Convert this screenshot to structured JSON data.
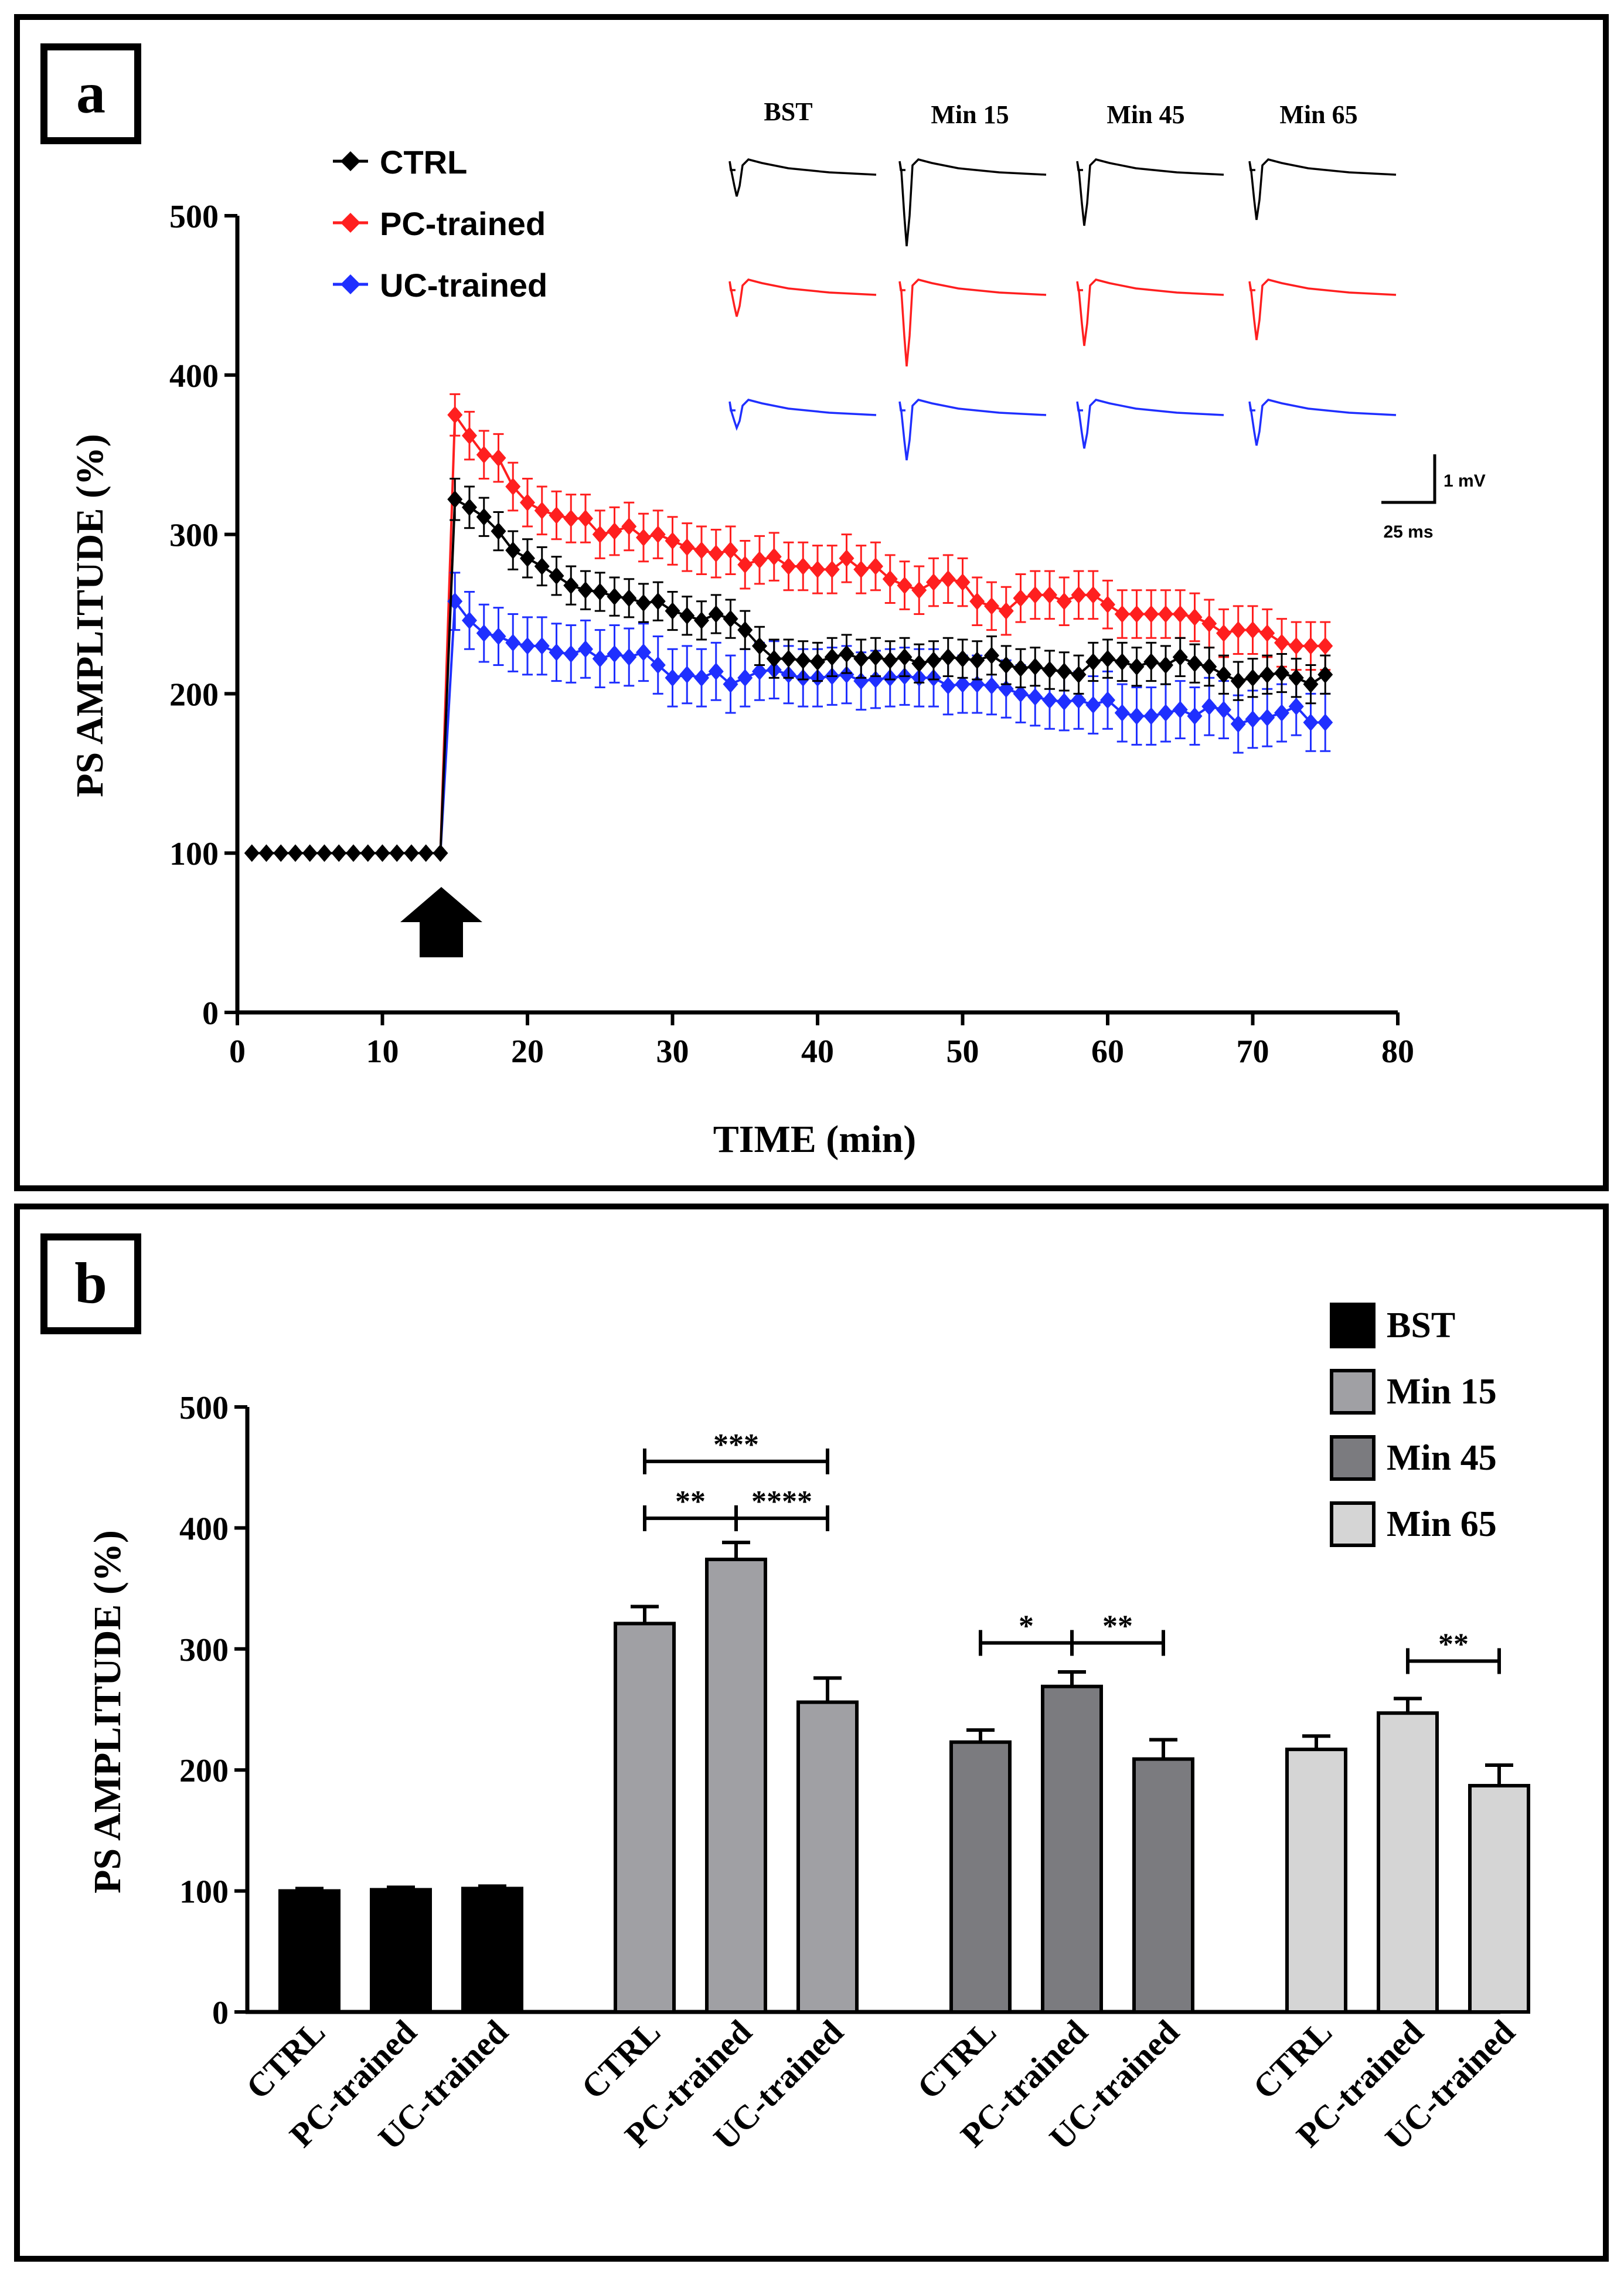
{
  "colors": {
    "ctrl": "#000000",
    "pc": "#ff1f1f",
    "uc": "#1f2fff",
    "bst": "#000000",
    "min15": "#a0a0a4",
    "min45": "#7b7b7f",
    "min65": "#d5d5d5"
  },
  "chart_data": [
    {
      "type": "line",
      "panel_label": "a",
      "xlabel": "TIME (min)",
      "ylabel": "PS AMPLITUDE (%)",
      "xlim": [
        0,
        80
      ],
      "ylim": [
        0,
        500
      ],
      "xticks": [
        "0",
        "10",
        "20",
        "30",
        "40",
        "50",
        "60",
        "70",
        "80"
      ],
      "yticks": [
        "0",
        "100",
        "200",
        "300",
        "400",
        "500"
      ],
      "arrow_at_minute": 14,
      "legend": [
        "CTRL",
        "PC-trained",
        "UC-trained"
      ],
      "trace_columns": [
        "BST",
        "Min 15",
        "Min 45",
        "Min 65"
      ],
      "scale_bar": {
        "voltage": "1 mV",
        "time": "25 ms"
      },
      "x": [
        1,
        2,
        3,
        4,
        5,
        6,
        7,
        8,
        9,
        10,
        11,
        12,
        13,
        14,
        15,
        16,
        17,
        18,
        19,
        20,
        21,
        22,
        23,
        24,
        25,
        26,
        27,
        28,
        29,
        30,
        31,
        32,
        33,
        34,
        35,
        36,
        37,
        38,
        39,
        40,
        41,
        42,
        43,
        44,
        45,
        46,
        47,
        48,
        49,
        50,
        51,
        52,
        53,
        54,
        55,
        56,
        57,
        58,
        59,
        60,
        61,
        62,
        63,
        64,
        65,
        66,
        67,
        68,
        69,
        70,
        71,
        72,
        73,
        74,
        75
      ],
      "series": [
        {
          "name": "CTRL",
          "values": [
            100,
            100,
            100,
            100,
            100,
            100,
            100,
            100,
            100,
            100,
            100,
            100,
            100,
            100,
            322,
            317,
            311,
            302,
            290,
            285,
            280,
            274,
            268,
            265,
            264,
            261,
            260,
            257,
            258,
            252,
            249,
            246,
            250,
            247,
            240,
            230,
            222,
            222,
            221,
            220,
            223,
            225,
            222,
            223,
            221,
            223,
            219,
            221,
            223,
            222,
            221,
            224,
            218,
            216,
            217,
            215,
            214,
            212,
            220,
            222,
            220,
            217,
            220,
            218,
            223,
            219,
            217,
            212,
            208,
            210,
            212,
            213,
            210,
            206,
            212
          ],
          "error": [
            0,
            0,
            0,
            0,
            0,
            0,
            0,
            0,
            0,
            0,
            0,
            0,
            0,
            0,
            13,
            13,
            12,
            12,
            12,
            12,
            12,
            12,
            12,
            12,
            12,
            12,
            12,
            12,
            12,
            12,
            12,
            12,
            12,
            12,
            12,
            12,
            12,
            12,
            12,
            12,
            12,
            12,
            12,
            12,
            12,
            12,
            12,
            12,
            12,
            12,
            12,
            12,
            12,
            12,
            12,
            12,
            12,
            12,
            12,
            12,
            12,
            12,
            12,
            12,
            12,
            12,
            12,
            12,
            12,
            12,
            12,
            12,
            12,
            12,
            12
          ]
        },
        {
          "name": "PC-trained",
          "values": [
            null,
            null,
            null,
            null,
            null,
            null,
            null,
            null,
            null,
            null,
            null,
            null,
            null,
            null,
            375,
            362,
            350,
            348,
            330,
            320,
            315,
            312,
            310,
            310,
            300,
            302,
            305,
            298,
            300,
            296,
            292,
            290,
            288,
            290,
            281,
            284,
            286,
            280,
            280,
            278,
            278,
            285,
            278,
            280,
            272,
            268,
            265,
            270,
            272,
            270,
            258,
            255,
            252,
            260,
            262,
            262,
            258,
            262,
            262,
            256,
            250,
            250,
            250,
            250,
            250,
            248,
            244,
            238,
            240,
            240,
            238,
            232,
            230,
            230,
            230
          ],
          "error": [
            0,
            0,
            0,
            0,
            0,
            0,
            0,
            0,
            0,
            0,
            0,
            0,
            0,
            0,
            13,
            15,
            15,
            15,
            15,
            15,
            15,
            15,
            15,
            15,
            15,
            15,
            15,
            15,
            15,
            15,
            15,
            15,
            15,
            15,
            15,
            15,
            15,
            15,
            15,
            15,
            15,
            15,
            15,
            15,
            15,
            15,
            15,
            15,
            15,
            15,
            15,
            15,
            15,
            15,
            15,
            15,
            15,
            15,
            15,
            15,
            15,
            15,
            15,
            15,
            15,
            15,
            15,
            15,
            15,
            15,
            15,
            15,
            15,
            15,
            15
          ]
        },
        {
          "name": "UC-trained",
          "values": [
            null,
            null,
            null,
            null,
            null,
            null,
            null,
            null,
            null,
            null,
            null,
            null,
            null,
            null,
            258,
            246,
            238,
            236,
            232,
            230,
            230,
            226,
            225,
            228,
            222,
            225,
            223,
            226,
            218,
            210,
            212,
            210,
            214,
            206,
            210,
            214,
            215,
            212,
            210,
            210,
            211,
            212,
            208,
            209,
            210,
            211,
            210,
            210,
            205,
            206,
            206,
            205,
            203,
            200,
            198,
            196,
            195,
            196,
            193,
            196,
            188,
            186,
            186,
            188,
            190,
            186,
            192,
            190,
            181,
            184,
            185,
            188,
            192,
            182,
            182
          ],
          "error": [
            0,
            0,
            0,
            0,
            0,
            0,
            0,
            0,
            0,
            0,
            0,
            0,
            0,
            0,
            18,
            18,
            18,
            18,
            18,
            18,
            18,
            18,
            18,
            18,
            18,
            18,
            18,
            18,
            18,
            18,
            18,
            18,
            18,
            18,
            18,
            18,
            18,
            18,
            18,
            18,
            18,
            18,
            18,
            18,
            18,
            18,
            18,
            18,
            18,
            18,
            18,
            18,
            18,
            18,
            18,
            18,
            18,
            18,
            18,
            18,
            18,
            18,
            18,
            18,
            18,
            18,
            18,
            18,
            18,
            18,
            18,
            18,
            18,
            18,
            18
          ]
        }
      ]
    },
    {
      "type": "bar",
      "panel_label": "b",
      "ylabel": "PS AMPLITUDE (%)",
      "ylim": [
        0,
        500
      ],
      "yticks": [
        "0",
        "100",
        "200",
        "300",
        "400",
        "500"
      ],
      "categories": [
        "CTRL",
        "PC-trained",
        "UC-trained"
      ],
      "groups": [
        {
          "name": "BST",
          "values": [
            100,
            101,
            102
          ],
          "error": [
            2,
            2,
            2
          ]
        },
        {
          "name": "Min 15",
          "values": [
            321,
            374,
            256
          ],
          "error": [
            14,
            14,
            20
          ]
        },
        {
          "name": "Min 45",
          "values": [
            223,
            269,
            209
          ],
          "error": [
            10,
            12,
            16
          ]
        },
        {
          "name": "Min 65",
          "values": [
            217,
            247,
            187
          ],
          "error": [
            11,
            12,
            17
          ]
        }
      ],
      "significance": [
        {
          "group": 1,
          "from": 0,
          "to": 2,
          "label": "***",
          "y": 455
        },
        {
          "group": 1,
          "from": 0,
          "to": 1,
          "label": "**",
          "y": 408
        },
        {
          "group": 1,
          "from": 1,
          "to": 2,
          "label": "****",
          "y": 408
        },
        {
          "group": 2,
          "from": 0,
          "to": 1,
          "label": "*",
          "y": 305
        },
        {
          "group": 2,
          "from": 1,
          "to": 2,
          "label": "**",
          "y": 305
        },
        {
          "group": 3,
          "from": 1,
          "to": 2,
          "label": "**",
          "y": 290
        }
      ]
    }
  ]
}
